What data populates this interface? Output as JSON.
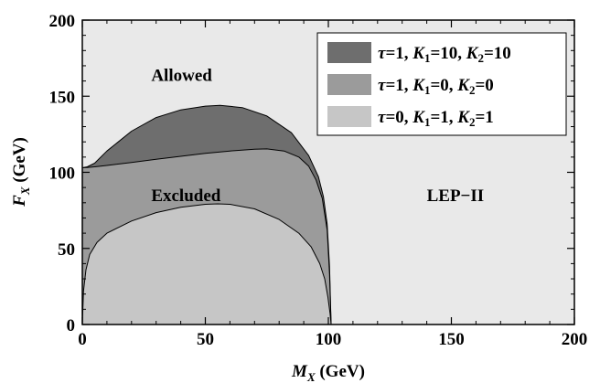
{
  "chart_data": {
    "type": "area",
    "xlabel_symbol": "M",
    "xlabel_sub": "X",
    "xlabel_unit": " (GeV)",
    "ylabel_symbol": "F",
    "ylabel_sub": "X",
    "ylabel_unit": " (GeV)",
    "xlim": [
      0,
      200
    ],
    "ylim": [
      0,
      200
    ],
    "xticks": [
      0,
      50,
      100,
      150,
      200
    ],
    "yticks": [
      0,
      50,
      100,
      150,
      200
    ],
    "background_color": "#e9e9e9",
    "annotations": [
      {
        "id": "allowed",
        "text": "Allowed",
        "x": 28,
        "y": 160
      },
      {
        "id": "excluded",
        "text": "Excluded",
        "x": 28,
        "y": 81
      },
      {
        "id": "lep",
        "text": "LEP−II",
        "x": 140,
        "y": 81
      }
    ],
    "series": [
      {
        "id": "s1",
        "tau": "1",
        "k1": "10",
        "k2": "10",
        "color": "#6e6e6e",
        "x": [
          0,
          2,
          5,
          10,
          20,
          30,
          40,
          50,
          56,
          65,
          75,
          85,
          92,
          96,
          98,
          99.5,
          100.5,
          101.1
        ],
        "y": [
          103,
          103.6,
          106,
          114,
          127,
          136,
          141,
          143.5,
          144,
          142.5,
          137,
          126,
          111,
          97,
          84,
          66,
          38,
          0
        ]
      },
      {
        "id": "s2",
        "tau": "1",
        "k1": "0",
        "k2": "0",
        "color": "#9b9b9b",
        "x": [
          0,
          2,
          5,
          10,
          20,
          30,
          40,
          50,
          60,
          70,
          75,
          82,
          88,
          92,
          95,
          97.5,
          99.5,
          100.5,
          101.1
        ],
        "y": [
          103,
          103.2,
          103.6,
          104.5,
          106.5,
          108.5,
          110.5,
          112.5,
          114,
          115.2,
          115.4,
          114,
          110,
          104,
          95,
          83,
          62,
          33,
          0
        ]
      },
      {
        "id": "s3",
        "tau": "0",
        "k1": "1",
        "k2": "1",
        "color": "#c6c6c6",
        "x": [
          0,
          0.5,
          1.5,
          3,
          6,
          10,
          20,
          30,
          40,
          50,
          55,
          60,
          70,
          80,
          88,
          93,
          96.5,
          98.5,
          99.8,
          100.7,
          101.1
        ],
        "y": [
          0,
          22,
          36,
          46,
          54,
          60,
          68,
          73.5,
          77,
          79,
          79.3,
          79,
          76,
          69,
          60,
          51,
          40,
          30,
          18,
          7,
          0
        ]
      }
    ],
    "legend": {
      "position": "top-right",
      "tau_symbol": "τ",
      "k_symbol": "K"
    }
  }
}
